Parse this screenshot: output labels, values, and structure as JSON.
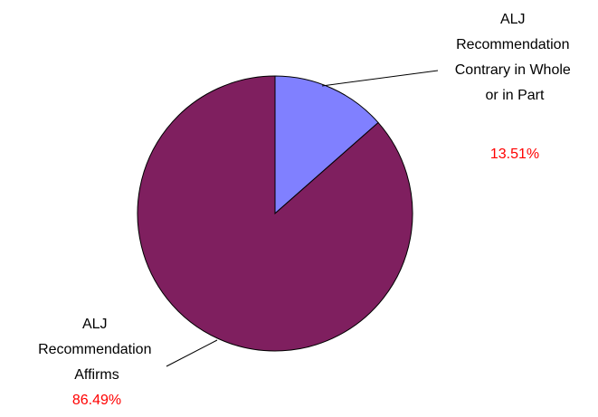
{
  "chart_data": {
    "type": "pie",
    "title": "",
    "slices": [
      {
        "label_lines": [
          "ALJ",
          "Recommendation",
          "Contrary in Whole",
          "or in Part"
        ],
        "value": 13.51,
        "value_label": "13.51%",
        "color": "#8080ff"
      },
      {
        "label_lines": [
          "ALJ",
          "Recommendation",
          "Affirms"
        ],
        "value": 86.49,
        "value_label": "86.49%",
        "color": "#7f1f5f"
      }
    ],
    "start_angle": "12 o'clock",
    "direction": "clockwise",
    "legend": "none",
    "value_label_color": "#ff0000",
    "outline_color": "#000000"
  }
}
